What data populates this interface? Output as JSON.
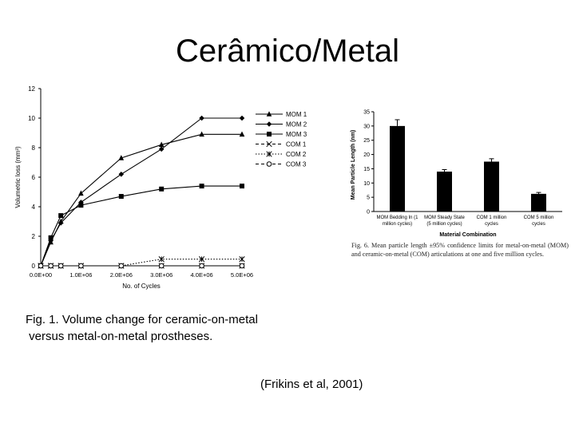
{
  "slide": {
    "title": "Cerâmico/Metal",
    "fig1_line1": "Fig. 1. Volume change for ceramic-on-metal",
    "fig1_line2": " versus metal-on-metal prostheses.",
    "fig6_caption": "Fig. 6. Mean particle length ±95% confidence limits for metal-on-metal (MOM) and ceramic-on-metal (COM) articulations at one and five million cycles.",
    "citation": "(Frikins et al, 2001)"
  },
  "chart_data": [
    {
      "type": "line",
      "xlabel": "No. of Cycles",
      "ylabel": "Volumetric loss (mm³)",
      "ylim": [
        0,
        12
      ],
      "xlim": [
        0,
        5000000
      ],
      "yticks": [
        "0",
        "2",
        "4",
        "6",
        "8",
        "10",
        "12"
      ],
      "xticks": [
        "0.0E+00",
        "1.0E+06",
        "2.0E+06",
        "3.0E+06",
        "4.0E+06",
        "5.0E+06"
      ],
      "legend_position": "right",
      "grid": false,
      "series": [
        {
          "name": "MOM 1",
          "marker": "triangle",
          "dash": "solid",
          "x": [
            0,
            250000,
            500000,
            1000000,
            2000000,
            3000000,
            4000000,
            5000000
          ],
          "y": [
            0,
            1.6,
            3.0,
            4.9,
            7.3,
            8.2,
            8.9,
            8.9
          ]
        },
        {
          "name": "MOM 2",
          "marker": "diamond",
          "dash": "solid",
          "x": [
            0,
            250000,
            500000,
            1000000,
            2000000,
            3000000,
            4000000,
            5000000
          ],
          "y": [
            0,
            1.7,
            2.9,
            4.3,
            6.2,
            7.9,
            10.0,
            10.0
          ]
        },
        {
          "name": "MOM 3",
          "marker": "square",
          "dash": "solid",
          "x": [
            0,
            250000,
            500000,
            1000000,
            2000000,
            3000000,
            4000000,
            5000000
          ],
          "y": [
            0,
            1.9,
            3.4,
            4.1,
            4.7,
            5.2,
            5.4,
            5.4
          ]
        },
        {
          "name": "COM 1",
          "marker": "x",
          "dash": "dashed",
          "x": [
            0,
            250000,
            500000,
            1000000,
            2000000,
            3000000,
            4000000,
            5000000
          ],
          "y": [
            0,
            0,
            0,
            0,
            0,
            0,
            0,
            0
          ]
        },
        {
          "name": "COM 2",
          "marker": "asterisk",
          "dash": "dotted",
          "x": [
            0,
            250000,
            500000,
            1000000,
            2000000,
            3000000,
            4000000,
            5000000
          ],
          "y": [
            0,
            0,
            0,
            0,
            0,
            0.45,
            0.45,
            0.45
          ]
        },
        {
          "name": "COM 3",
          "marker": "circle",
          "dash": "dashed",
          "x": [
            0,
            250000,
            500000,
            1000000,
            2000000,
            3000000,
            4000000,
            5000000
          ],
          "y": [
            0,
            0,
            0,
            0,
            0,
            0,
            0,
            0
          ]
        }
      ]
    },
    {
      "type": "bar",
      "xlabel": "Material Combination",
      "ylabel": "Mean Particle Length (nm)",
      "ylim": [
        0,
        35
      ],
      "yticks": [
        "0",
        "5",
        "10",
        "15",
        "20",
        "25",
        "30",
        "35"
      ],
      "categories": [
        [
          "MOM Bedding In (1",
          "million cycles)"
        ],
        [
          "MOM Steady State",
          "(5 million cycles)"
        ],
        [
          "COM 1 million",
          "cycles"
        ],
        [
          "COM 5 million",
          "cycles"
        ]
      ],
      "values": [
        30,
        14,
        17.5,
        6.2
      ],
      "errors": [
        2.2,
        0.7,
        1.0,
        0.5
      ],
      "bar_color": "#000000"
    }
  ]
}
